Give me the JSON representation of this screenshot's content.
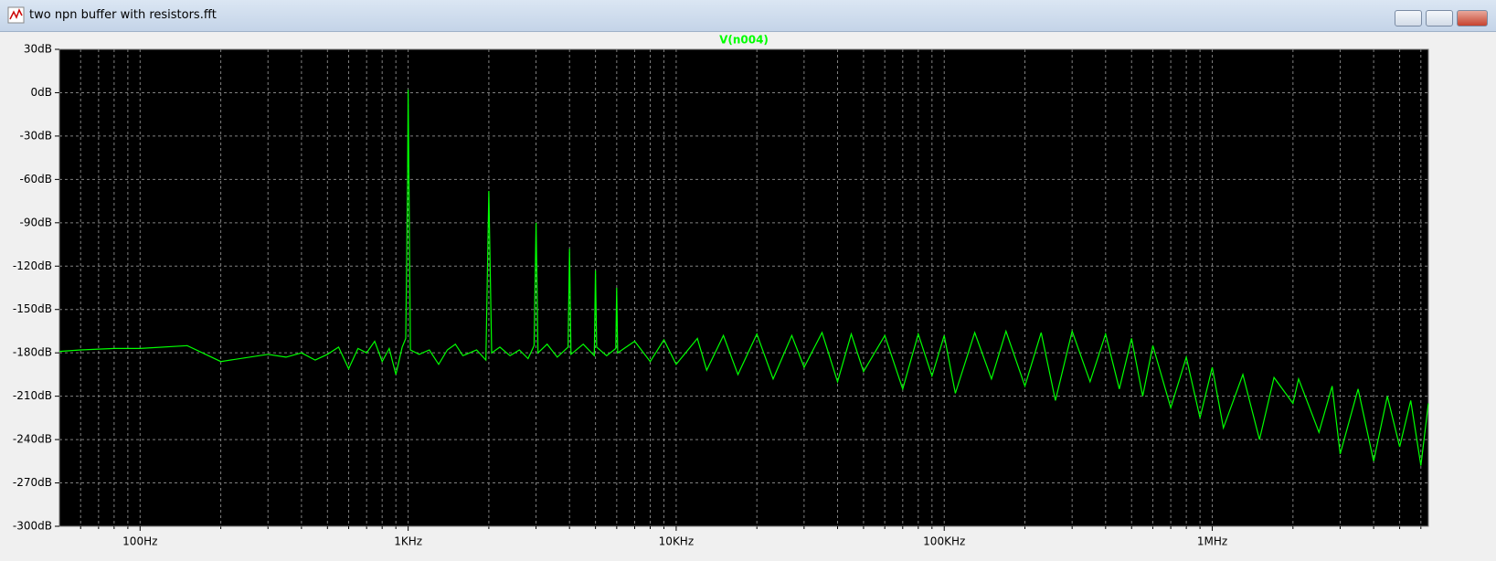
{
  "window": {
    "title": "two npn buffer with resistors.fft"
  },
  "chart_data": {
    "type": "line",
    "log_x": true,
    "grid": true,
    "xlim": [
      50,
      6400000
    ],
    "ylim": [
      -300,
      30
    ],
    "xticks": [
      {
        "value": 100,
        "label": "100Hz"
      },
      {
        "value": 1000,
        "label": "1KHz"
      },
      {
        "value": 10000,
        "label": "10KHz"
      },
      {
        "value": 100000,
        "label": "100KHz"
      },
      {
        "value": 1000000,
        "label": "1MHz"
      }
    ],
    "yticks": [
      {
        "value": 30,
        "label": "30dB"
      },
      {
        "value": 0,
        "label": "0dB"
      },
      {
        "value": -30,
        "label": "-30dB"
      },
      {
        "value": -60,
        "label": "-60dB"
      },
      {
        "value": -90,
        "label": "-90dB"
      },
      {
        "value": -120,
        "label": "-120dB"
      },
      {
        "value": -150,
        "label": "-150dB"
      },
      {
        "value": -180,
        "label": "-180dB"
      },
      {
        "value": -210,
        "label": "-210dB"
      },
      {
        "value": -240,
        "label": "-240dB"
      },
      {
        "value": -270,
        "label": "-270dB"
      },
      {
        "value": -300,
        "label": "-300dB"
      }
    ],
    "x": [
      50,
      60,
      80,
      100,
      150,
      200,
      300,
      350,
      400,
      450,
      500,
      550,
      600,
      650,
      700,
      750,
      800,
      850,
      900,
      950,
      980,
      995,
      1000,
      1005,
      1020,
      1100,
      1200,
      1300,
      1400,
      1500,
      1600,
      1800,
      1950,
      2000,
      2050,
      2200,
      2400,
      2600,
      2800,
      2950,
      3000,
      3050,
      3300,
      3600,
      3950,
      4000,
      4050,
      4500,
      4950,
      5000,
      5050,
      5500,
      5950,
      6000,
      6050,
      7000,
      8000,
      9000,
      10000,
      12000,
      13000,
      15000,
      17000,
      20000,
      23000,
      27000,
      30000,
      35000,
      40000,
      45000,
      50000,
      60000,
      70000,
      80000,
      90000,
      100000,
      110000,
      130000,
      150000,
      170000,
      200000,
      230000,
      260000,
      300000,
      350000,
      400000,
      450000,
      500000,
      550000,
      600000,
      700000,
      800000,
      900000,
      1000000,
      1100000,
      1300000,
      1500000,
      1700000,
      2000000,
      2100000,
      2500000,
      2800000,
      3000000,
      3500000,
      4000000,
      4500000,
      5000000,
      5500000,
      6000000,
      6400000
    ],
    "series": [
      {
        "name": "V(n004)",
        "color": "#00ff00",
        "values": [
          -179,
          -178,
          -177,
          -177,
          -175,
          -186,
          -181,
          -183,
          -180,
          -185,
          -181,
          -176,
          -191,
          -177,
          -180,
          -172,
          -186,
          -177,
          -195,
          -176,
          -170,
          -60,
          2,
          -40,
          -178,
          -181,
          -178,
          -188,
          -178,
          -174,
          -182,
          -178,
          -185,
          -68,
          -180,
          -176,
          -182,
          -178,
          -184,
          -175,
          -90,
          -180,
          -174,
          -183,
          -176,
          -108,
          -181,
          -174,
          -182,
          -123,
          -176,
          -182,
          -177,
          -135,
          -180,
          -172,
          -186,
          -171,
          -188,
          -170,
          -192,
          -168,
          -195,
          -167,
          -198,
          -168,
          -190,
          -166,
          -200,
          -167,
          -193,
          -168,
          -205,
          -167,
          -196,
          -168,
          -208,
          -166,
          -198,
          -165,
          -203,
          -166,
          -213,
          -165,
          -200,
          -167,
          -205,
          -170,
          -210,
          -175,
          -218,
          -183,
          -225,
          -190,
          -232,
          -195,
          -240,
          -197,
          -215,
          -198,
          -235,
          -203,
          -250,
          -205,
          -255,
          -210,
          -245,
          -213,
          -258,
          -215
        ]
      }
    ]
  }
}
